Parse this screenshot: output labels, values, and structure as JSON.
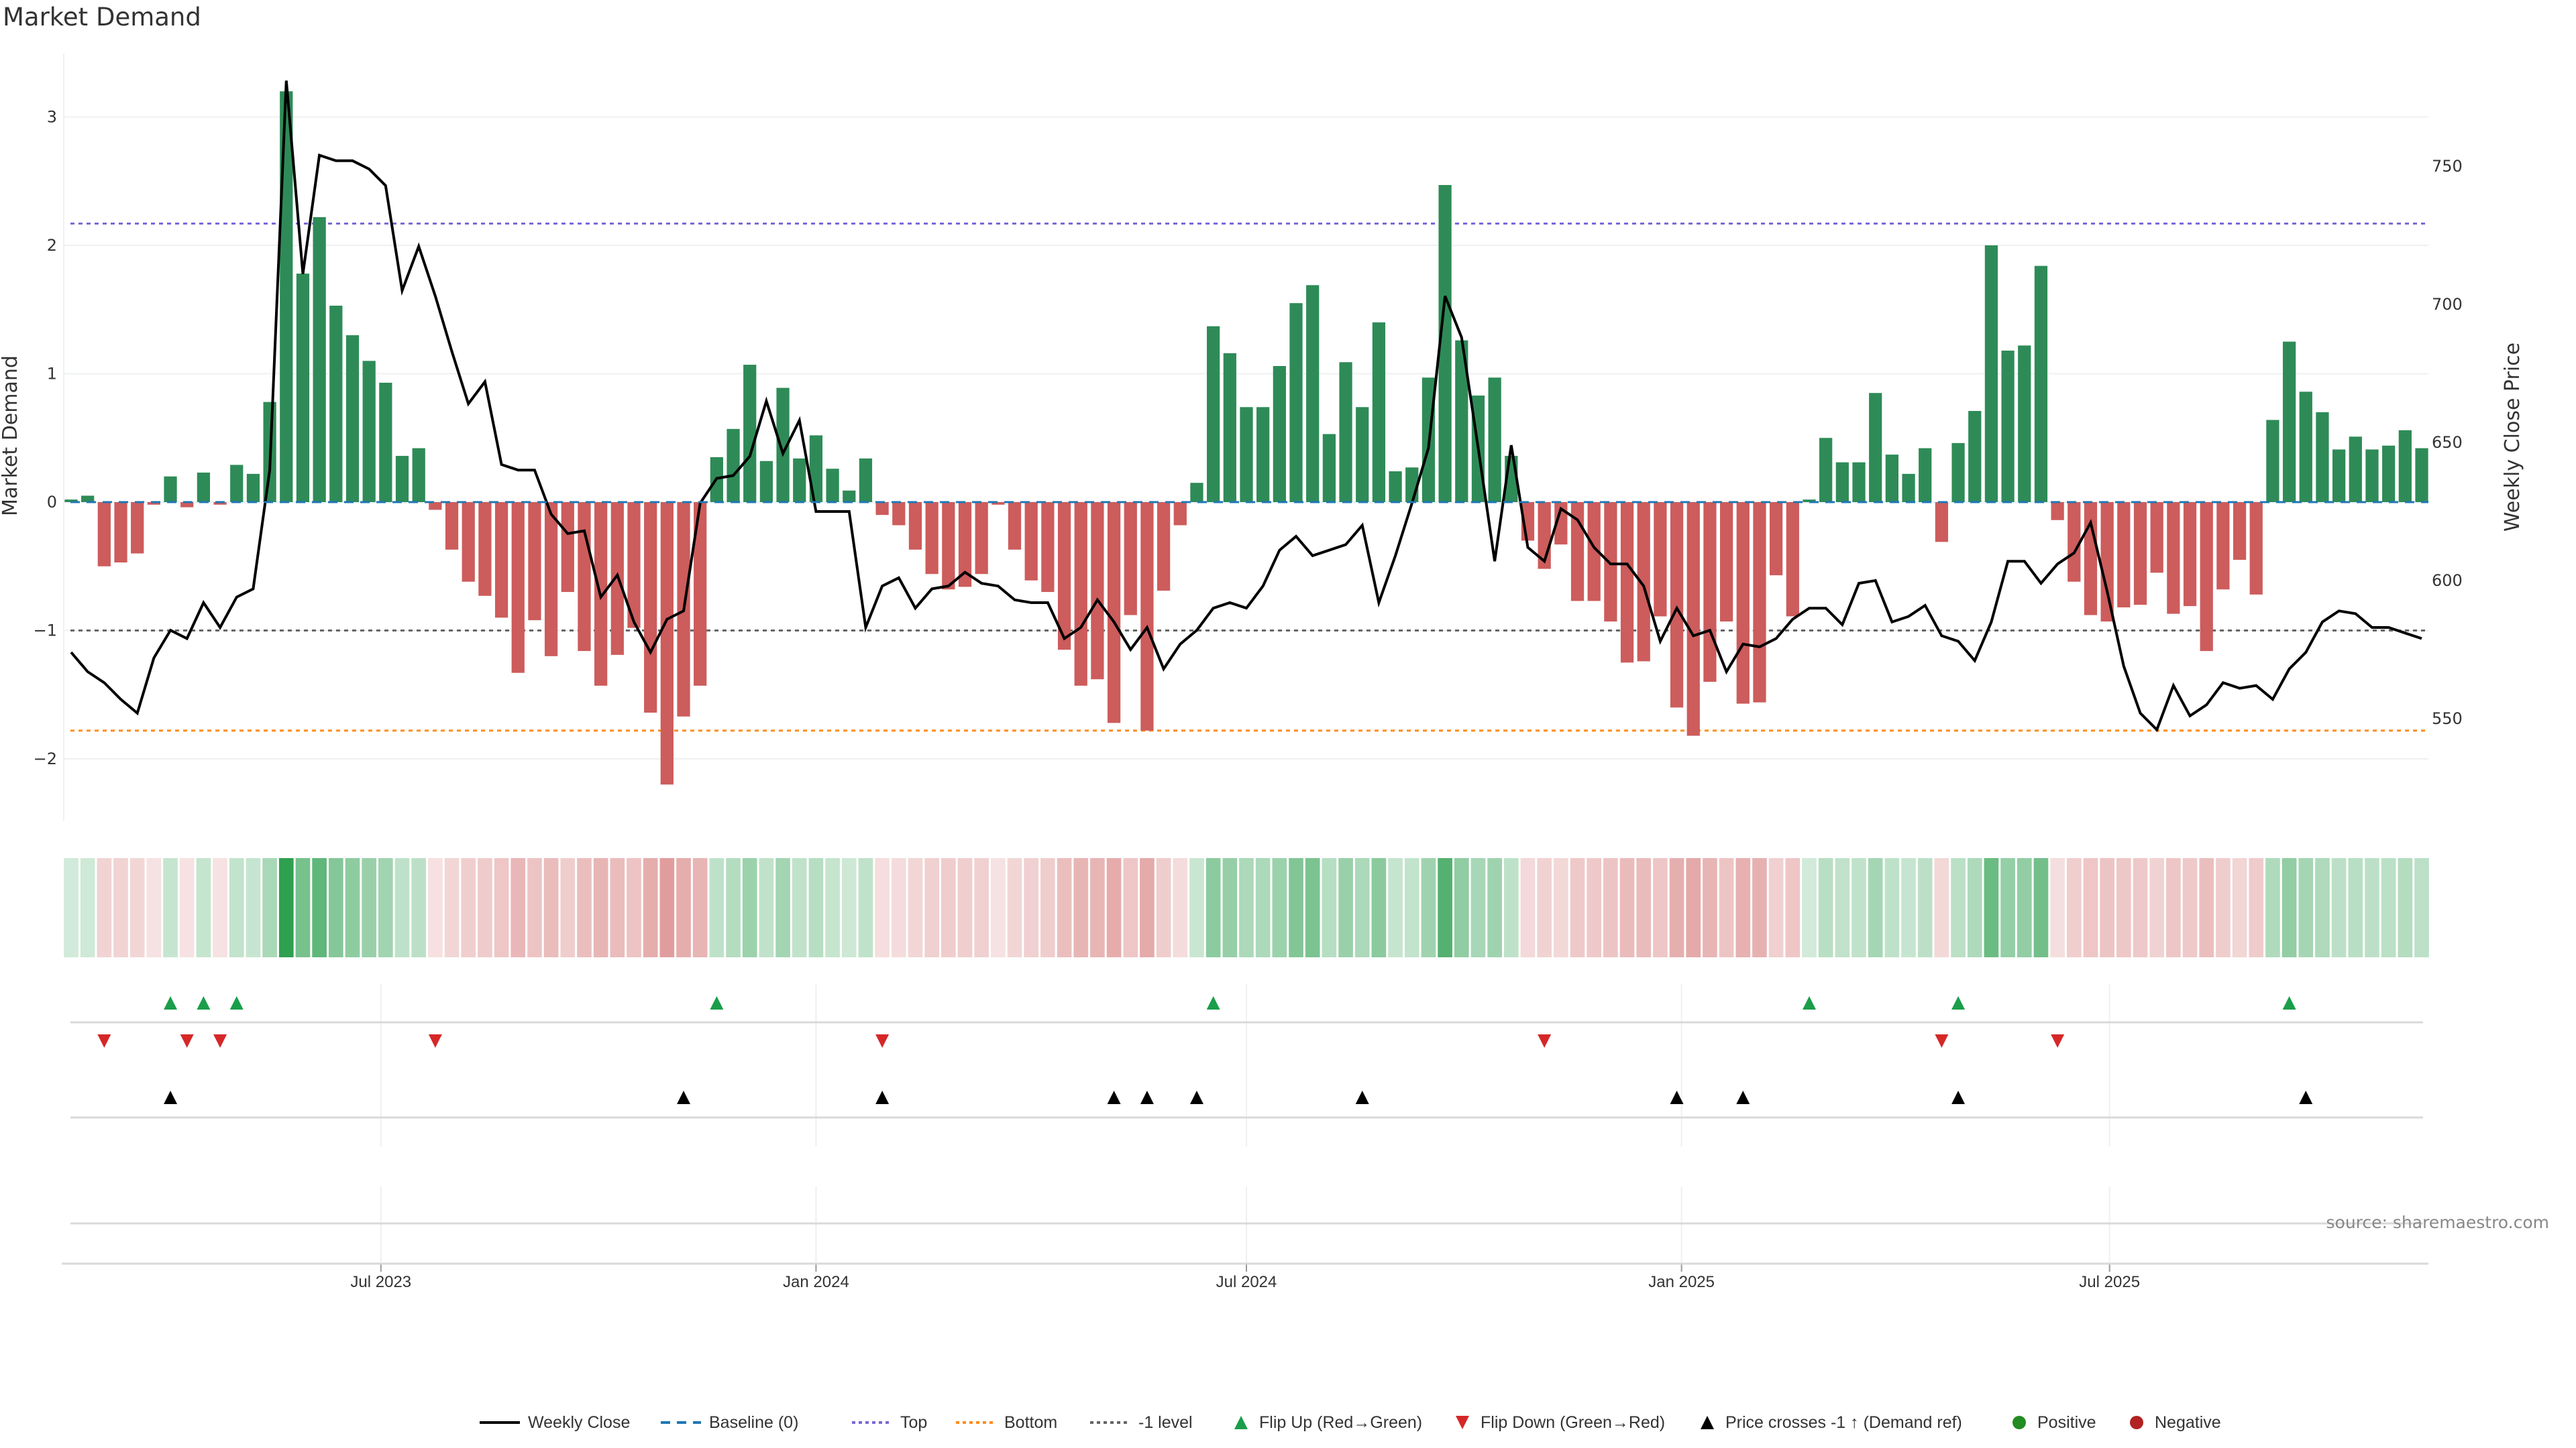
{
  "title": "Market Demand",
  "source": "source: sharemaestro.com",
  "chart_data": {
    "type": "bar",
    "title": "Market Demand",
    "ylabel": "Market Demand",
    "y2label": "Weekly Close Price",
    "ylim": [
      -2.5,
      3.3
    ],
    "y2lim": [
      520,
      780
    ],
    "yticks": [
      3,
      2,
      1,
      0,
      -1,
      -2
    ],
    "ytick_labels": [
      "3",
      "2",
      "1",
      "0",
      "−1",
      "−2"
    ],
    "y2ticks": [
      750,
      700,
      650,
      600,
      550
    ],
    "y2tick_labels": [
      "750",
      "700",
      "650",
      "600",
      "550"
    ],
    "start_week": "2023-02-20",
    "xticks": [
      {
        "date": "2023-07-01",
        "label": "Jul 2023"
      },
      {
        "date": "2024-01-01",
        "label": "Jan 2024"
      },
      {
        "date": "2024-07-01",
        "label": "Jul 2024"
      },
      {
        "date": "2025-01-01",
        "label": "Jan 2025"
      },
      {
        "date": "2025-07-01",
        "label": "Jul 2025"
      }
    ],
    "reference_lines": {
      "top": 2.17,
      "bottom": -1.78,
      "minus_one": -1,
      "baseline": 0
    },
    "colors": {
      "positive": "#2e8b57",
      "negative": "#cd5c5c",
      "price": "#000000",
      "baseline": "#1f77b4",
      "top": "#7b68d8",
      "bottom": "#ff8c1a",
      "minus_one": "#666666",
      "flip_up": "#1a9e4a",
      "flip_down": "#d62728",
      "cross": "#000000",
      "pos_dot": "#228b22",
      "neg_dot": "#b22222"
    },
    "demand": [
      0.02,
      0.05,
      -0.5,
      -0.47,
      -0.4,
      -0.02,
      0.2,
      -0.04,
      0.23,
      -0.02,
      0.29,
      0.22,
      0.78,
      3.2,
      1.78,
      2.22,
      1.53,
      1.3,
      1.1,
      0.93,
      0.36,
      0.42,
      -0.06,
      -0.37,
      -0.62,
      -0.73,
      -0.9,
      -1.33,
      -0.92,
      -1.2,
      -0.7,
      -1.16,
      -1.43,
      -1.19,
      -0.98,
      -1.64,
      -2.2,
      -1.67,
      -1.43,
      0.35,
      0.57,
      1.07,
      0.32,
      0.89,
      0.34,
      0.52,
      0.26,
      0.09,
      0.34,
      -0.1,
      -0.18,
      -0.37,
      -0.56,
      -0.68,
      -0.66,
      -0.56,
      -0.02,
      -0.37,
      -0.61,
      -0.7,
      -1.15,
      -1.43,
      -1.38,
      -1.72,
      -0.88,
      -1.78,
      -0.69,
      -0.18,
      0.15,
      1.37,
      1.16,
      0.74,
      0.74,
      1.06,
      1.55,
      1.69,
      0.53,
      1.09,
      0.74,
      1.4,
      0.24,
      0.27,
      0.97,
      2.47,
      1.26,
      0.83,
      0.97,
      0.36,
      -0.3,
      -0.52,
      -0.33,
      -0.77,
      -0.77,
      -0.93,
      -1.25,
      -1.24,
      -0.89,
      -1.6,
      -1.82,
      -1.4,
      -0.93,
      -1.57,
      -1.56,
      -0.57,
      -0.89,
      0.02,
      0.5,
      0.31,
      0.31,
      0.85,
      0.37,
      0.22,
      0.42,
      -0.31,
      0.46,
      0.71,
      2.0,
      1.18,
      1.22,
      1.84,
      -0.14,
      -0.62,
      -0.88,
      -0.93,
      -0.82,
      -0.8,
      -0.55,
      -0.87,
      -0.81,
      -1.16,
      -0.68,
      -0.45,
      -0.72,
      0.64,
      1.25,
      0.86,
      0.7,
      0.41,
      0.51,
      0.41,
      0.44,
      0.56,
      0.42
    ],
    "price": [
      574,
      567,
      563,
      557,
      552,
      572,
      582,
      579,
      592,
      583,
      594,
      597,
      640,
      781,
      711,
      754,
      752,
      752,
      749,
      743,
      705,
      721,
      703,
      683,
      664,
      672,
      642,
      640,
      640,
      624,
      617,
      618,
      594,
      602,
      585,
      574,
      586,
      589,
      628,
      637,
      638,
      645,
      665,
      646,
      658,
      625,
      625,
      625,
      583,
      598,
      601,
      590,
      597,
      598,
      603,
      599,
      598,
      593,
      592,
      592,
      579,
      583,
      593,
      585,
      575,
      583,
      568,
      577,
      582,
      590,
      592,
      590,
      598,
      611,
      616,
      609,
      611,
      613,
      620,
      592,
      609,
      628,
      648,
      703,
      688,
      648,
      607,
      649,
      612,
      607,
      626,
      622,
      612,
      606,
      606,
      598,
      578,
      590,
      580,
      582,
      567,
      577,
      576,
      579,
      586,
      590,
      590,
      584,
      599,
      600,
      585,
      587,
      591,
      580,
      578,
      571,
      585,
      607,
      607,
      599,
      606,
      610,
      621,
      596,
      569,
      552,
      546,
      562,
      551,
      555,
      563,
      561,
      562,
      557,
      568,
      574,
      585,
      589,
      588,
      583,
      583,
      581,
      579
    ],
    "flip_up_weeks": [
      6,
      8,
      10,
      39,
      69,
      105,
      114,
      134
    ],
    "flip_down_weeks": [
      2,
      7,
      9,
      22,
      49,
      89,
      113,
      120
    ],
    "cross_weeks": [
      6,
      37,
      49,
      63,
      65,
      68,
      78,
      97,
      101,
      114,
      135
    ],
    "legend": [
      "Weekly Close",
      "Baseline (0)",
      "Top",
      "Bottom",
      "-1 level",
      "Flip Up (Red→Green)",
      "Flip Down (Green→Red)",
      "Price crosses -1 ↑ (Demand ref)",
      "Positive",
      "Negative"
    ],
    "legend_position": "bottom-center"
  }
}
